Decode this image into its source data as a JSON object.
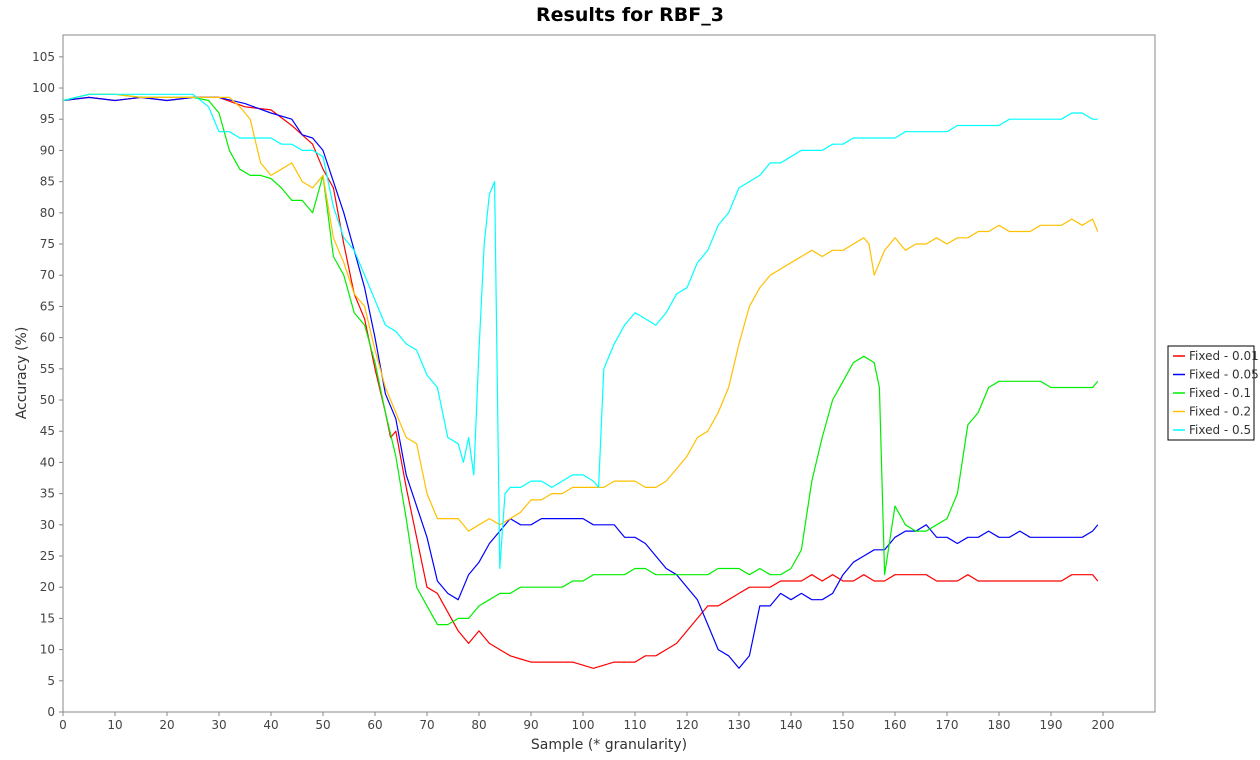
{
  "chart_data": {
    "type": "line",
    "title": "Results for RBF_3",
    "xlabel": "Sample (* granularity)",
    "ylabel": "Accuracy (%)",
    "xlim": [
      0,
      210
    ],
    "ylim": [
      0,
      108.5
    ],
    "xticks": [
      0,
      10,
      20,
      30,
      40,
      50,
      60,
      70,
      80,
      90,
      100,
      110,
      120,
      130,
      140,
      150,
      160,
      170,
      180,
      190,
      200
    ],
    "yticks": [
      0,
      5,
      10,
      15,
      20,
      25,
      30,
      35,
      40,
      45,
      50,
      55,
      60,
      65,
      70,
      75,
      80,
      85,
      90,
      95,
      100,
      105
    ],
    "grid": false,
    "legend": "right",
    "series": [
      {
        "name": "Fixed - 0.01",
        "color": "#ff0000",
        "x": [
          0,
          5,
          10,
          15,
          20,
          25,
          30,
          35,
          40,
          44,
          48,
          50,
          52,
          54,
          56,
          58,
          60,
          62,
          63,
          64,
          66,
          68,
          70,
          72,
          74,
          76,
          78,
          80,
          82,
          84,
          86,
          88,
          90,
          92,
          94,
          96,
          98,
          100,
          102,
          104,
          106,
          108,
          110,
          112,
          114,
          116,
          118,
          120,
          122,
          124,
          126,
          128,
          130,
          132,
          134,
          136,
          138,
          140,
          142,
          144,
          146,
          148,
          150,
          152,
          154,
          156,
          158,
          160,
          162,
          164,
          166,
          168,
          170,
          172,
          174,
          176,
          178,
          180,
          182,
          184,
          186,
          188,
          190,
          192,
          194,
          196,
          198,
          199
        ],
        "y": [
          98,
          98.5,
          98,
          98.5,
          98,
          98.5,
          98.5,
          97,
          96.5,
          94,
          91,
          87,
          84,
          75,
          67,
          63,
          55,
          48,
          44,
          45,
          36,
          28,
          20,
          19,
          16,
          13,
          11,
          13,
          11,
          10,
          9,
          8.5,
          8,
          8,
          8,
          8,
          8,
          7.5,
          7,
          7.5,
          8,
          8,
          8,
          9,
          9,
          10,
          11,
          13,
          15,
          17,
          17,
          18,
          19,
          20,
          20,
          20,
          21,
          21,
          21,
          22,
          21,
          22,
          21,
          21,
          22,
          21,
          21,
          22,
          22,
          22,
          22,
          21,
          21,
          21,
          22,
          21,
          21,
          21,
          21,
          21,
          21,
          21,
          21,
          21,
          22,
          22,
          22,
          21
        ]
      },
      {
        "name": "Fixed - 0.05",
        "color": "#0000ff",
        "x": [
          0,
          5,
          10,
          15,
          20,
          25,
          30,
          35,
          40,
          44,
          46,
          48,
          50,
          52,
          54,
          56,
          58,
          60,
          62,
          64,
          66,
          68,
          70,
          72,
          74,
          76,
          78,
          80,
          82,
          84,
          86,
          88,
          90,
          92,
          94,
          96,
          98,
          100,
          102,
          104,
          106,
          108,
          110,
          112,
          114,
          116,
          118,
          120,
          122,
          124,
          126,
          128,
          130,
          132,
          134,
          136,
          138,
          140,
          142,
          144,
          146,
          148,
          150,
          152,
          154,
          156,
          158,
          160,
          162,
          164,
          166,
          168,
          170,
          172,
          174,
          176,
          178,
          180,
          182,
          184,
          186,
          188,
          190,
          192,
          194,
          196,
          198,
          199
        ],
        "y": [
          98,
          98.5,
          98,
          98.5,
          98,
          98.5,
          98.5,
          97.5,
          96,
          95,
          92.5,
          92,
          90,
          85,
          80,
          74,
          68,
          60,
          51,
          47,
          38,
          33,
          28,
          21,
          19,
          18,
          22,
          24,
          27,
          29,
          31,
          30,
          30,
          31,
          31,
          31,
          31,
          31,
          30,
          30,
          30,
          28,
          28,
          27,
          25,
          23,
          22,
          20,
          18,
          14,
          10,
          9,
          7,
          9,
          17,
          17,
          19,
          18,
          19,
          18,
          18,
          19,
          22,
          24,
          25,
          26,
          26,
          28,
          29,
          29,
          30,
          28,
          28,
          27,
          28,
          28,
          29,
          28,
          28,
          29,
          28,
          28,
          28,
          28,
          28,
          28,
          29,
          30
        ]
      },
      {
        "name": "Fixed - 0.1",
        "color": "#00ee00",
        "x": [
          0,
          5,
          10,
          15,
          20,
          25,
          28,
          30,
          32,
          34,
          36,
          38,
          40,
          42,
          44,
          46,
          48,
          50,
          52,
          54,
          56,
          58,
          60,
          62,
          64,
          66,
          68,
          70,
          72,
          74,
          76,
          78,
          80,
          82,
          84,
          86,
          88,
          90,
          92,
          94,
          96,
          98,
          100,
          102,
          104,
          106,
          108,
          110,
          112,
          114,
          116,
          118,
          120,
          122,
          124,
          126,
          128,
          130,
          132,
          134,
          136,
          138,
          140,
          142,
          144,
          146,
          148,
          150,
          152,
          154,
          156,
          157,
          158,
          160,
          162,
          164,
          166,
          168,
          170,
          172,
          174,
          176,
          178,
          180,
          182,
          184,
          186,
          188,
          190,
          192,
          194,
          196,
          198,
          199
        ],
        "y": [
          98,
          99,
          99,
          98.5,
          98.5,
          98.5,
          98,
          96,
          90,
          87,
          86,
          86,
          85.5,
          84,
          82,
          82,
          80,
          86,
          73,
          70,
          64,
          62,
          56,
          48,
          41,
          31,
          20,
          17,
          14,
          14,
          15,
          15,
          17,
          18,
          19,
          19,
          20,
          20,
          20,
          20,
          20,
          21,
          21,
          22,
          22,
          22,
          22,
          23,
          23,
          22,
          22,
          22,
          22,
          22,
          22,
          23,
          23,
          23,
          22,
          23,
          22,
          22,
          23,
          26,
          37,
          44,
          50,
          53,
          56,
          57,
          56,
          52,
          22,
          33,
          30,
          29,
          29,
          30,
          31,
          35,
          46,
          48,
          52,
          53,
          53,
          53,
          53,
          53,
          52,
          52,
          52,
          52,
          52,
          53
        ]
      },
      {
        "name": "Fixed - 0.2",
        "color": "#ffc000",
        "x": [
          0,
          5,
          10,
          15,
          20,
          25,
          30,
          32,
          34,
          36,
          38,
          40,
          42,
          44,
          46,
          48,
          50,
          52,
          54,
          56,
          58,
          60,
          62,
          64,
          66,
          68,
          70,
          72,
          74,
          76,
          78,
          80,
          82,
          84,
          86,
          88,
          90,
          92,
          94,
          96,
          98,
          100,
          102,
          104,
          106,
          108,
          110,
          112,
          114,
          116,
          118,
          120,
          122,
          124,
          126,
          128,
          130,
          132,
          134,
          136,
          138,
          140,
          142,
          144,
          146,
          148,
          150,
          152,
          154,
          155,
          156,
          158,
          160,
          162,
          164,
          166,
          168,
          170,
          172,
          174,
          176,
          178,
          180,
          182,
          184,
          186,
          188,
          190,
          192,
          194,
          196,
          198,
          199
        ],
        "y": [
          98,
          99,
          99,
          98.5,
          98.5,
          98.5,
          98.5,
          98.5,
          97,
          95,
          88,
          86,
          87,
          88,
          85,
          84,
          86,
          76,
          72,
          67,
          65,
          58,
          52,
          48,
          44,
          43,
          35,
          31,
          31,
          31,
          29,
          30,
          31,
          30,
          31,
          32,
          34,
          34,
          35,
          35,
          36,
          36,
          36,
          36,
          37,
          37,
          37,
          36,
          36,
          37,
          39,
          41,
          44,
          45,
          48,
          52,
          59,
          65,
          68,
          70,
          71,
          72,
          73,
          74,
          73,
          74,
          74,
          75,
          76,
          75,
          70,
          74,
          76,
          74,
          75,
          75,
          76,
          75,
          76,
          76,
          77,
          77,
          78,
          77,
          77,
          77,
          78,
          78,
          78,
          79,
          78,
          79,
          77
        ]
      },
      {
        "name": "Fixed - 0.5",
        "color": "#00ffff",
        "x": [
          0,
          5,
          10,
          15,
          20,
          25,
          28,
          30,
          32,
          34,
          36,
          38,
          40,
          42,
          44,
          46,
          48,
          50,
          52,
          54,
          56,
          58,
          60,
          62,
          64,
          66,
          68,
          70,
          72,
          74,
          76,
          77,
          78,
          79,
          80,
          81,
          82,
          83,
          84,
          85,
          86,
          88,
          90,
          92,
          94,
          96,
          98,
          100,
          102,
          103,
          104,
          106,
          108,
          110,
          112,
          114,
          116,
          118,
          120,
          122,
          124,
          126,
          128,
          130,
          132,
          134,
          136,
          138,
          140,
          142,
          144,
          146,
          148,
          150,
          152,
          154,
          156,
          158,
          160,
          162,
          164,
          166,
          168,
          170,
          172,
          174,
          176,
          178,
          180,
          182,
          184,
          186,
          188,
          190,
          192,
          194,
          196,
          198,
          199
        ],
        "y": [
          98,
          99,
          99,
          99,
          99,
          99,
          97,
          93,
          93,
          92,
          92,
          92,
          92,
          91,
          91,
          90,
          90,
          89,
          81,
          76,
          74,
          70,
          66,
          62,
          61,
          59,
          58,
          54,
          52,
          44,
          43,
          40,
          44,
          38,
          58,
          75,
          83,
          85,
          23,
          35,
          36,
          36,
          37,
          37,
          36,
          37,
          38,
          38,
          37,
          36,
          55,
          59,
          62,
          64,
          63,
          62,
          64,
          67,
          68,
          72,
          74,
          78,
          80,
          84,
          85,
          86,
          88,
          88,
          89,
          90,
          90,
          90,
          91,
          91,
          92,
          92,
          92,
          92,
          92,
          93,
          93,
          93,
          93,
          93,
          94,
          94,
          94,
          94,
          94,
          95,
          95,
          95,
          95,
          95,
          95,
          96,
          96,
          95,
          95
        ]
      }
    ]
  }
}
